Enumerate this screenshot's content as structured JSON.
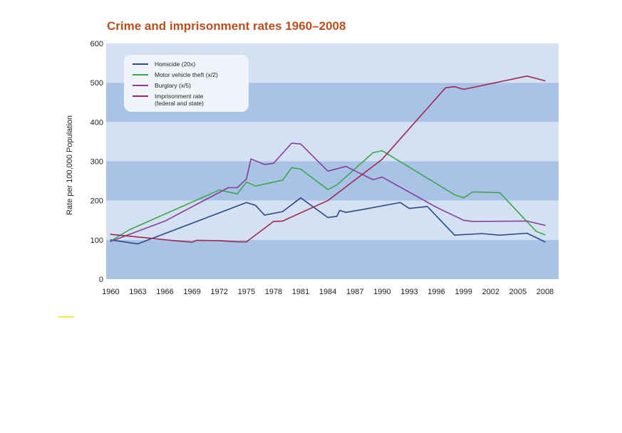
{
  "chart_data": {
    "type": "line",
    "title": "Crime and imprisonment rates 1960–2008",
    "xlabel": "",
    "ylabel": "Rate per 100,000 Population",
    "xlim": [
      1959.5,
      2009.5
    ],
    "ylim": [
      0,
      600
    ],
    "xticks": [
      "1960",
      "1963",
      "1966",
      "1969",
      "1972",
      "1975",
      "1978",
      "1981",
      "1984",
      "1987",
      "1990",
      "1993",
      "1996",
      "1999",
      "2002",
      "2005",
      "2008"
    ],
    "yticks": [
      "0",
      "100",
      "200",
      "300",
      "400",
      "500",
      "600"
    ],
    "legend_position": "top-left",
    "grid": "horizontal bands",
    "series": [
      {
        "name": "Homicide (20x)",
        "color": "#2a4a8c",
        "points": [
          [
            1960,
            100
          ],
          [
            1963,
            90
          ],
          [
            1975,
            195
          ],
          [
            1976,
            188
          ],
          [
            1977,
            163
          ],
          [
            1979,
            172
          ],
          [
            1981,
            207
          ],
          [
            1984,
            157
          ],
          [
            1985,
            160
          ],
          [
            1985.3,
            175
          ],
          [
            1986,
            170
          ],
          [
            1988,
            178
          ],
          [
            1992,
            195
          ],
          [
            1993,
            180
          ],
          [
            1995,
            185
          ],
          [
            1998,
            112
          ],
          [
            2001,
            116
          ],
          [
            2003,
            112
          ],
          [
            2006,
            117
          ],
          [
            2008,
            95
          ]
        ]
      },
      {
        "name": "Motor vehicle theft (x/2)",
        "color": "#3aa848",
        "points": [
          [
            1960,
            97
          ],
          [
            1962,
            125
          ],
          [
            1972,
            227
          ],
          [
            1974,
            217
          ],
          [
            1975,
            247
          ],
          [
            1976,
            237
          ],
          [
            1979,
            252
          ],
          [
            1980,
            284
          ],
          [
            1981,
            280
          ],
          [
            1984,
            228
          ],
          [
            1985,
            240
          ],
          [
            1989,
            322
          ],
          [
            1990,
            327
          ],
          [
            1998,
            215
          ],
          [
            1999,
            207
          ],
          [
            2000,
            222
          ],
          [
            2003,
            220
          ],
          [
            2007,
            122
          ],
          [
            2008,
            113
          ]
        ]
      },
      {
        "name": "Burglary (x/5)",
        "color": "#8a3d9c",
        "points": [
          [
            1960,
            96
          ],
          [
            1966,
            148
          ],
          [
            1973,
            233
          ],
          [
            1974,
            233
          ],
          [
            1975,
            255
          ],
          [
            1975.5,
            306
          ],
          [
            1977,
            292
          ],
          [
            1978,
            295
          ],
          [
            1980,
            346
          ],
          [
            1981,
            344
          ],
          [
            1984,
            275
          ],
          [
            1986,
            287
          ],
          [
            1989,
            253
          ],
          [
            1990,
            260
          ],
          [
            1996,
            183
          ],
          [
            1999,
            150
          ],
          [
            2000,
            147
          ],
          [
            2006,
            148
          ],
          [
            2008,
            137
          ]
        ]
      },
      {
        "name": "Imprisonment rate\n(federal and state)",
        "color": "#a02850",
        "points": [
          [
            1960,
            114
          ],
          [
            1964,
            105
          ],
          [
            1967,
            98
          ],
          [
            1969,
            94
          ],
          [
            1969.5,
            99
          ],
          [
            1972,
            98
          ],
          [
            1974,
            95
          ],
          [
            1975,
            95
          ],
          [
            1978,
            147
          ],
          [
            1979,
            148
          ],
          [
            1984,
            200
          ],
          [
            1990,
            305
          ],
          [
            1997,
            487
          ],
          [
            1998,
            490
          ],
          [
            1999,
            483
          ],
          [
            2006,
            517
          ],
          [
            2008,
            505
          ]
        ]
      }
    ]
  }
}
